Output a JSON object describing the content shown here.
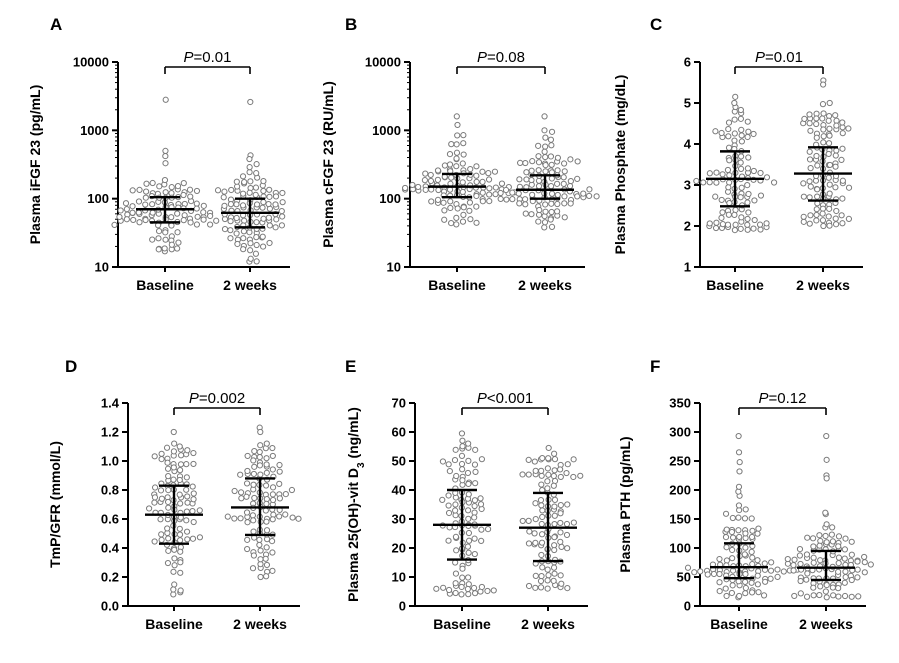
{
  "chart_data": [
    {
      "type": "scatter",
      "panel": "A",
      "ylabel": "Plasma iFGF 23 (pg/mL)",
      "yscale": "log",
      "ylim": [
        10,
        10000
      ],
      "yticks": [
        10,
        100,
        1000,
        10000
      ],
      "yticklabels": [
        "10",
        "100",
        "1000",
        "10000"
      ],
      "categories": [
        "Baseline",
        "2 weeks"
      ],
      "pvalue": {
        "label": "P",
        "text": "=0.01"
      },
      "groups": [
        {
          "median": 70,
          "q1": 45,
          "q3": 105,
          "min": 17,
          "max": 2800,
          "outliers": [
            2800,
            500,
            420,
            330
          ],
          "n": 110
        },
        {
          "median": 62,
          "q1": 38,
          "q3": 100,
          "min": 12,
          "max": 2600,
          "outliers": [
            2600,
            430,
            380,
            320
          ],
          "n": 110
        }
      ]
    },
    {
      "type": "scatter",
      "panel": "B",
      "ylabel": "Plasma cFGF 23 (RU/mL)",
      "yscale": "log",
      "ylim": [
        10,
        10000
      ],
      "yticks": [
        10,
        100,
        1000,
        10000
      ],
      "yticklabels": [
        "10",
        "100",
        "1000",
        "10000"
      ],
      "categories": [
        "Baseline",
        "2 weeks"
      ],
      "pvalue": {
        "label": "P",
        "text": "=0.08"
      },
      "groups": [
        {
          "median": 150,
          "q1": 105,
          "q3": 230,
          "min": 42,
          "max": 1600,
          "outliers": [
            1600,
            1200,
            850
          ],
          "n": 110
        },
        {
          "median": 135,
          "q1": 100,
          "q3": 220,
          "min": 38,
          "max": 1600,
          "outliers": [
            1600,
            1000,
            950
          ],
          "n": 110
        }
      ]
    },
    {
      "type": "scatter",
      "panel": "C",
      "ylabel": "Plasma Phosphate (mg/dL)",
      "yscale": "linear",
      "ylim": [
        1,
        6
      ],
      "yticks": [
        1,
        2,
        3,
        4,
        5,
        6
      ],
      "yticklabels": [
        "1",
        "2",
        "3",
        "4",
        "5",
        "6"
      ],
      "categories": [
        "Baseline",
        "2 weeks"
      ],
      "pvalue": {
        "label": "P",
        "text": "=0.01"
      },
      "groups": [
        {
          "median": 3.15,
          "q1": 2.48,
          "q3": 3.82,
          "min": 1.9,
          "max": 5.15,
          "outliers": [
            5.15,
            5.0
          ],
          "n": 110
        },
        {
          "median": 3.28,
          "q1": 2.62,
          "q3": 3.92,
          "min": 2.0,
          "max": 5.55,
          "outliers": [
            5.55,
            5.45,
            5.0
          ],
          "n": 110
        }
      ]
    },
    {
      "type": "scatter",
      "panel": "D",
      "ylabel": "TmP/GFR (mmol/L)",
      "yscale": "linear",
      "ylim": [
        0,
        1.4
      ],
      "yticks": [
        0,
        0.2,
        0.4,
        0.6,
        0.8,
        1.0,
        1.2,
        1.4
      ],
      "yticklabels": [
        "0.0",
        "0.2",
        "0.4",
        "0.6",
        "0.8",
        "1.0",
        "1.2",
        "1.4"
      ],
      "categories": [
        "Baseline",
        "2 weeks"
      ],
      "pvalue": {
        "label": "P",
        "text": "=0.002"
      },
      "groups": [
        {
          "median": 0.63,
          "q1": 0.43,
          "q3": 0.83,
          "min": 0.08,
          "max": 1.2,
          "outliers": [
            1.2,
            1.12,
            1.1
          ],
          "n": 110
        },
        {
          "median": 0.68,
          "q1": 0.49,
          "q3": 0.88,
          "min": 0.2,
          "max": 1.23,
          "outliers": [
            1.23,
            1.2,
            1.12
          ],
          "n": 110
        }
      ]
    },
    {
      "type": "scatter",
      "panel": "E",
      "ylabel": "Plasma 25(OH)-vit D",
      "ylabel_sub": "3",
      "ylabel_tail": " (ng/mL)",
      "yscale": "linear",
      "ylim": [
        0,
        70
      ],
      "yticks": [
        0,
        10,
        20,
        30,
        40,
        50,
        60,
        70
      ],
      "yticklabels": [
        "0",
        "10",
        "20",
        "30",
        "40",
        "50",
        "60",
        "70"
      ],
      "categories": [
        "Baseline",
        "2 weeks"
      ],
      "pvalue": {
        "label": "P",
        "text": "<0.001"
      },
      "groups": [
        {
          "median": 28,
          "q1": 16,
          "q3": 40,
          "min": 4,
          "max": 59.5,
          "outliers": [
            59.5,
            57,
            56
          ],
          "n": 110
        },
        {
          "median": 27,
          "q1": 15.5,
          "q3": 39,
          "min": 6,
          "max": 54.5,
          "outliers": [
            54.5,
            52.5,
            51
          ],
          "n": 110
        }
      ]
    },
    {
      "type": "scatter",
      "panel": "F",
      "ylabel": "Plasma PTH (pg/mL)",
      "yscale": "linear",
      "ylim": [
        0,
        350
      ],
      "yticks": [
        0,
        50,
        100,
        150,
        200,
        250,
        300,
        350
      ],
      "yticklabels": [
        "0",
        "50",
        "100",
        "150",
        "200",
        "250",
        "300",
        "350"
      ],
      "categories": [
        "Baseline",
        "2 weeks"
      ],
      "pvalue": {
        "label": "P",
        "text": "=0.12"
      },
      "groups": [
        {
          "median": 67,
          "q1": 48,
          "q3": 108,
          "min": 15,
          "max": 293,
          "outliers": [
            293,
            265,
            248,
            232
          ],
          "n": 110
        },
        {
          "median": 66,
          "q1": 45,
          "q3": 95,
          "min": 15,
          "max": 293,
          "outliers": [
            293,
            252,
            225,
            220
          ],
          "n": 110
        }
      ]
    }
  ]
}
